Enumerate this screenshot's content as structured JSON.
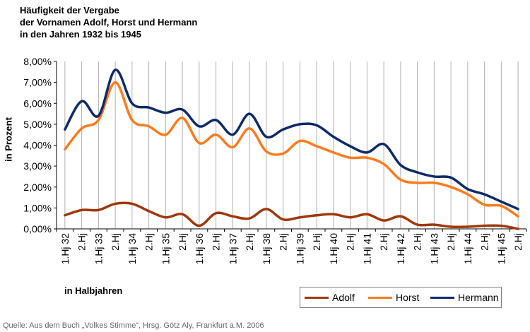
{
  "title_lines": [
    "Häufigkeit der Vergabe",
    "der Vornamen Adolf, Horst und Hermann",
    "in den Jahren 1932 bis 1945"
  ],
  "source": "Quelle: Aus dem Buch „Volkes Stimme“, Hrsg. Götz Aly, Frankfurt a.M. 2006",
  "colors": {
    "Adolf": "#a0380a",
    "Horst": "#ff7a1a",
    "Hermann": "#0e2a6a",
    "grid": "#b0b0b0"
  },
  "chart_data": {
    "type": "line",
    "title": "Häufigkeit der Vergabe der Vornamen Adolf, Horst und Hermann in den Jahren 1932 bis 1945",
    "xlabel": "in Halbjahren",
    "ylabel": "in Prozent",
    "ylim": [
      0,
      8
    ],
    "yticks": [
      "0,00%",
      "1,00%",
      "2,00%",
      "3,00%",
      "4,00%",
      "5,00%",
      "6,00%",
      "7,00%",
      "8,00%"
    ],
    "grid": "vertical lines at each half-year",
    "legend_position": "bottom-right",
    "categories": [
      "1.Hj 32",
      "2.Hj",
      "1.Hj 33",
      "2.Hj",
      "1.Hj 34",
      "2.Hj",
      "1.Hj 35",
      "2.Hj",
      "1.Hj 36",
      "2.Hj",
      "1.Hj 37",
      "2.Hj",
      "1.Hj 38",
      "2.Hj",
      "1.Hj 39",
      "2.Hj",
      "1.Hj 40",
      "2.Hj",
      "1.Hj 41",
      "2.Hj",
      "1.Hj 42",
      "2.Hj",
      "1.Hj 43",
      "2.Hj",
      "1.Hj 44",
      "2.Hj",
      "1.Hj 45",
      "2.Hj"
    ],
    "series": [
      {
        "name": "Adolf",
        "values": [
          0.65,
          0.9,
          0.9,
          1.2,
          1.2,
          0.85,
          0.55,
          0.7,
          0.15,
          0.75,
          0.6,
          0.5,
          0.95,
          0.45,
          0.55,
          0.65,
          0.7,
          0.55,
          0.7,
          0.4,
          0.6,
          0.2,
          0.2,
          0.1,
          0.1,
          0.15,
          0.15,
          0.0
        ]
      },
      {
        "name": "Horst",
        "values": [
          3.8,
          4.8,
          5.2,
          7.0,
          5.2,
          4.9,
          4.5,
          5.3,
          4.1,
          4.5,
          3.9,
          4.8,
          3.7,
          3.6,
          4.2,
          3.95,
          3.65,
          3.4,
          3.4,
          3.1,
          2.35,
          2.2,
          2.2,
          2.0,
          1.65,
          1.15,
          1.1,
          0.6
        ]
      },
      {
        "name": "Hermann",
        "values": [
          4.75,
          6.1,
          5.4,
          7.6,
          6.0,
          5.8,
          5.55,
          5.7,
          4.9,
          5.2,
          4.5,
          5.5,
          4.4,
          4.75,
          5.0,
          4.95,
          4.4,
          3.95,
          3.65,
          4.05,
          3.05,
          2.7,
          2.5,
          2.45,
          1.9,
          1.65,
          1.3,
          0.95
        ]
      }
    ]
  }
}
